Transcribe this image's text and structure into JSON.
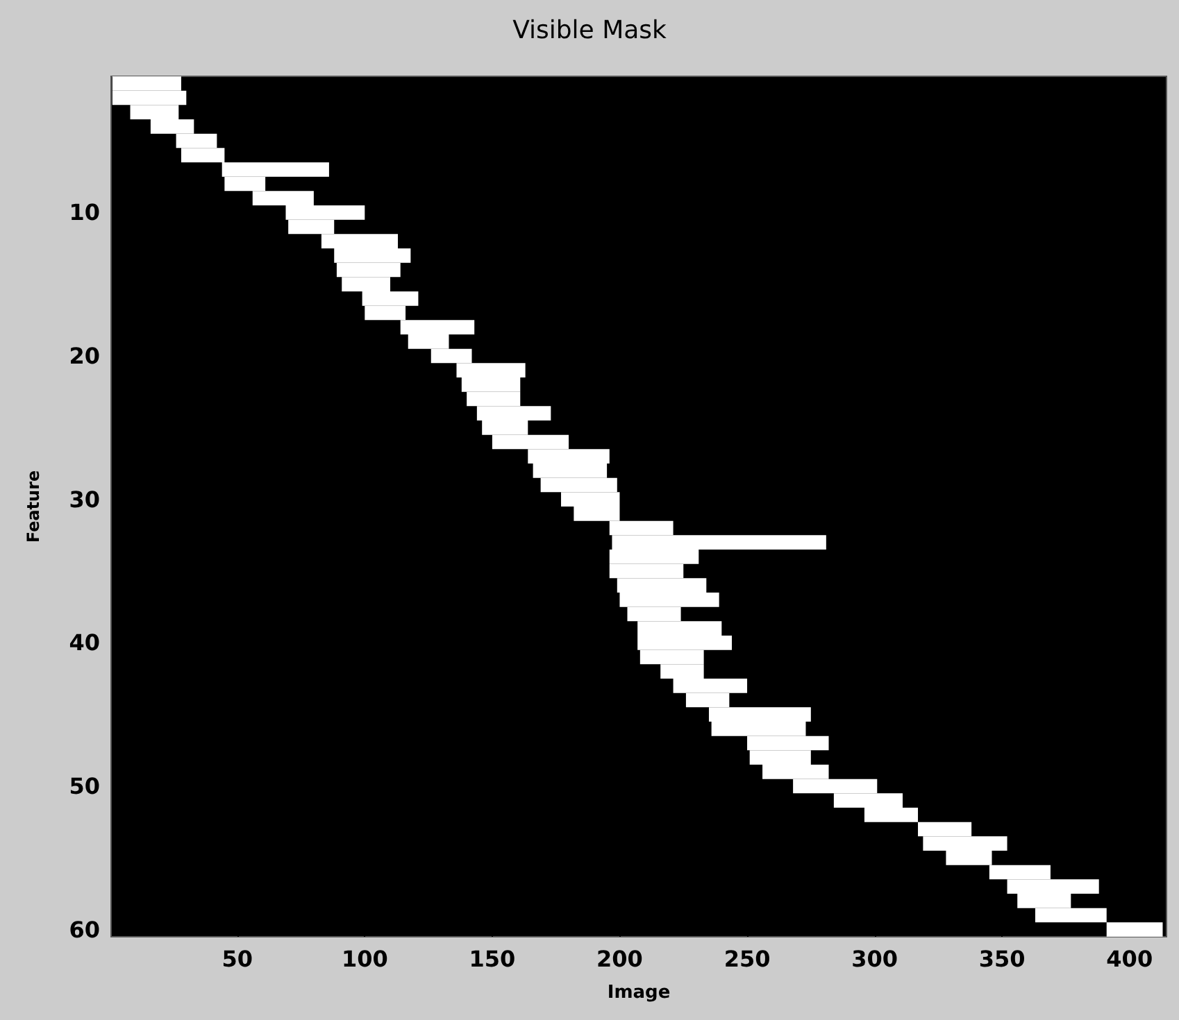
{
  "chart_data": {
    "type": "bar",
    "orientation": "horizontal",
    "title": "Visible Mask",
    "xlabel": "Image",
    "ylabel": "Feature",
    "categories": [
      null,
      null,
      null,
      null,
      null,
      null,
      null,
      null,
      null,
      "10",
      null,
      null,
      null,
      null,
      null,
      null,
      null,
      null,
      null,
      "20",
      null,
      null,
      null,
      null,
      null,
      null,
      null,
      null,
      null,
      "30",
      null,
      null,
      null,
      null,
      null,
      null,
      null,
      null,
      null,
      "40",
      null,
      null,
      null,
      null,
      null,
      null,
      null,
      null,
      null,
      "50",
      null,
      null,
      null,
      null,
      null,
      null,
      null,
      null,
      null,
      "60"
    ],
    "base": [
      1,
      1,
      8,
      16,
      26,
      28,
      44,
      45,
      56,
      69,
      70,
      83,
      88,
      89,
      91,
      99,
      100,
      114,
      117,
      126,
      136,
      138,
      140,
      144,
      146,
      150,
      164,
      166,
      169,
      177,
      182,
      196,
      197,
      196,
      196,
      199,
      200,
      203,
      207,
      207,
      208,
      216,
      221,
      226,
      235,
      236,
      250,
      251,
      256,
      268,
      284,
      296,
      317,
      319,
      328,
      345,
      352,
      356,
      363,
      391
    ],
    "values": [
      27,
      29,
      19,
      17,
      16,
      17,
      42,
      16,
      24,
      31,
      18,
      30,
      30,
      25,
      19,
      22,
      16,
      29,
      16,
      16,
      27,
      23,
      21,
      29,
      18,
      30,
      32,
      29,
      30,
      23,
      18,
      25,
      84,
      35,
      29,
      35,
      39,
      21,
      33,
      37,
      25,
      17,
      29,
      17,
      40,
      37,
      32,
      24,
      26,
      33,
      27,
      21,
      21,
      33,
      18,
      24,
      36,
      21,
      28,
      22
    ],
    "color": "#ffffff",
    "xlim": [
      0.5,
      414.5
    ],
    "xticks": [
      50,
      100,
      150,
      200,
      250,
      300,
      350,
      400
    ],
    "tick_labels": "xy"
  }
}
